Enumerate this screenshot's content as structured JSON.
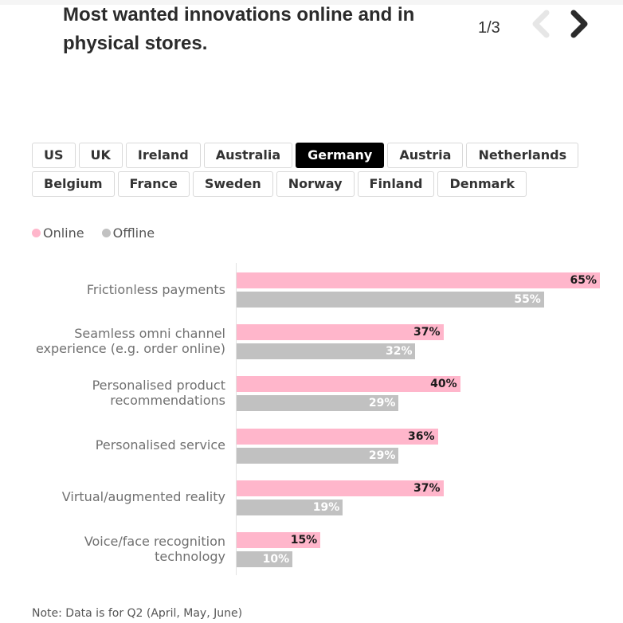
{
  "header": {
    "title": "Most wanted innovations online and in physical stores.",
    "pager": "1/3",
    "prev_icon": "chevron-left-icon",
    "next_icon": "chevron-right-icon"
  },
  "tabs": {
    "rows": [
      [
        "US",
        "UK",
        "Ireland",
        "Australia",
        "Germany",
        "Austria",
        "Netherlands"
      ],
      [
        "Belgium",
        "France",
        "Sweden",
        "Norway",
        "Finland",
        "Denmark"
      ]
    ],
    "active": "Germany"
  },
  "colors": {
    "online": "#ffb6cb",
    "offline": "#c1c1c1",
    "online_label": "#1a1a1a",
    "offline_label": "#ffffff"
  },
  "chart_data": {
    "type": "bar",
    "orientation": "horizontal",
    "title": "Most wanted innovations online and in physical stores.",
    "xlabel": "",
    "ylabel": "",
    "xlim": [
      0,
      65
    ],
    "grid": false,
    "legend_position": "top-left",
    "value_suffix": "%",
    "categories": [
      "Frictionless payments",
      "Seamless omni channel experience (e.g. order online)",
      "Personalised product recommendations",
      "Personalised service",
      "Virtual/augmented reality",
      "Voice/face recognition technology"
    ],
    "category_lines": [
      [
        "Frictionless payments"
      ],
      [
        "Seamless omni channel",
        "experience (e.g. order online)"
      ],
      [
        "Personalised product",
        "recommendations"
      ],
      [
        "Personalised service"
      ],
      [
        "Virtual/augmented reality"
      ],
      [
        "Voice/face recognition",
        "technology"
      ]
    ],
    "series": [
      {
        "name": "Online",
        "values": [
          65,
          37,
          40,
          36,
          37,
          15
        ],
        "labels": [
          "65%",
          "37%",
          "40%",
          "36%",
          "37%",
          "15%"
        ]
      },
      {
        "name": "Offline",
        "values": [
          55,
          32,
          29,
          29,
          19,
          10
        ],
        "labels": [
          "55%",
          "32%",
          "29%",
          "29%",
          "19%",
          "10%"
        ]
      }
    ]
  },
  "note": "Note: Data is for Q2 (April, May, June)"
}
